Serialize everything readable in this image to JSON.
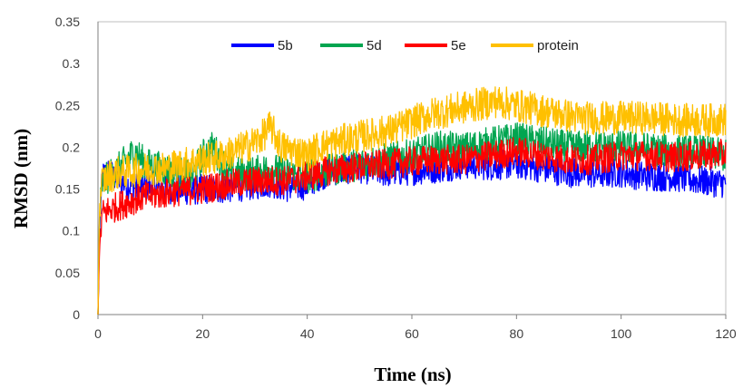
{
  "chart_data": {
    "type": "line",
    "title": "",
    "xlabel": "Time (ns)",
    "ylabel": "RMSD (nm)",
    "xlim": [
      0,
      120
    ],
    "ylim": [
      0,
      0.35
    ],
    "xticks": [
      "0",
      "20",
      "40",
      "60",
      "80",
      "100",
      "120"
    ],
    "yticks": [
      "0",
      "0.05",
      "0.1",
      "0.15",
      "0.2",
      "0.25",
      "0.3",
      "0.35"
    ],
    "grid": false,
    "legend_position": "top",
    "series": [
      {
        "name": "5b",
        "color": "#0000ff",
        "points": [
          [
            0,
            0.0
          ],
          [
            0.3,
            0.1
          ],
          [
            0.8,
            0.165
          ],
          [
            2,
            0.17
          ],
          [
            4,
            0.16
          ],
          [
            6,
            0.155
          ],
          [
            8,
            0.15
          ],
          [
            10,
            0.155
          ],
          [
            12,
            0.15
          ],
          [
            15,
            0.15
          ],
          [
            18,
            0.148
          ],
          [
            20,
            0.15
          ],
          [
            23,
            0.15
          ],
          [
            26,
            0.152
          ],
          [
            30,
            0.155
          ],
          [
            33,
            0.158
          ],
          [
            36,
            0.152
          ],
          [
            40,
            0.155
          ],
          [
            42,
            0.165
          ],
          [
            45,
            0.172
          ],
          [
            50,
            0.175
          ],
          [
            55,
            0.17
          ],
          [
            60,
            0.172
          ],
          [
            65,
            0.175
          ],
          [
            70,
            0.18
          ],
          [
            75,
            0.178
          ],
          [
            80,
            0.18
          ],
          [
            85,
            0.175
          ],
          [
            90,
            0.17
          ],
          [
            95,
            0.168
          ],
          [
            100,
            0.17
          ],
          [
            105,
            0.165
          ],
          [
            110,
            0.165
          ],
          [
            115,
            0.16
          ],
          [
            120,
            0.157
          ]
        ]
      },
      {
        "name": "5d",
        "color": "#00a550",
        "points": [
          [
            0,
            0.0
          ],
          [
            0.3,
            0.12
          ],
          [
            0.8,
            0.155
          ],
          [
            2,
            0.165
          ],
          [
            4,
            0.175
          ],
          [
            7,
            0.195
          ],
          [
            9,
            0.18
          ],
          [
            12,
            0.175
          ],
          [
            15,
            0.17
          ],
          [
            18,
            0.165
          ],
          [
            20,
            0.19
          ],
          [
            22,
            0.2
          ],
          [
            25,
            0.17
          ],
          [
            28,
            0.168
          ],
          [
            30,
            0.17
          ],
          [
            33,
            0.175
          ],
          [
            36,
            0.168
          ],
          [
            40,
            0.165
          ],
          [
            43,
            0.17
          ],
          [
            46,
            0.175
          ],
          [
            50,
            0.18
          ],
          [
            55,
            0.185
          ],
          [
            60,
            0.19
          ],
          [
            65,
            0.2
          ],
          [
            70,
            0.198
          ],
          [
            75,
            0.205
          ],
          [
            80,
            0.21
          ],
          [
            85,
            0.205
          ],
          [
            90,
            0.2
          ],
          [
            95,
            0.2
          ],
          [
            100,
            0.2
          ],
          [
            105,
            0.198
          ],
          [
            110,
            0.195
          ],
          [
            115,
            0.195
          ],
          [
            120,
            0.19
          ]
        ]
      },
      {
        "name": "5e",
        "color": "#ff0000",
        "points": [
          [
            0,
            0.0
          ],
          [
            0.3,
            0.08
          ],
          [
            0.8,
            0.12
          ],
          [
            2,
            0.125
          ],
          [
            4,
            0.13
          ],
          [
            6,
            0.135
          ],
          [
            8,
            0.14
          ],
          [
            10,
            0.142
          ],
          [
            13,
            0.145
          ],
          [
            16,
            0.148
          ],
          [
            20,
            0.15
          ],
          [
            24,
            0.155
          ],
          [
            28,
            0.158
          ],
          [
            32,
            0.16
          ],
          [
            36,
            0.16
          ],
          [
            40,
            0.165
          ],
          [
            44,
            0.172
          ],
          [
            48,
            0.175
          ],
          [
            52,
            0.178
          ],
          [
            56,
            0.18
          ],
          [
            60,
            0.183
          ],
          [
            65,
            0.185
          ],
          [
            70,
            0.185
          ],
          [
            75,
            0.19
          ],
          [
            80,
            0.195
          ],
          [
            85,
            0.19
          ],
          [
            90,
            0.185
          ],
          [
            95,
            0.185
          ],
          [
            100,
            0.19
          ],
          [
            105,
            0.19
          ],
          [
            110,
            0.188
          ],
          [
            115,
            0.19
          ],
          [
            120,
            0.192
          ]
        ]
      },
      {
        "name": "protein",
        "color": "#ffc000",
        "points": [
          [
            0,
            0.0
          ],
          [
            0.3,
            0.13
          ],
          [
            0.8,
            0.16
          ],
          [
            2,
            0.165
          ],
          [
            4,
            0.17
          ],
          [
            7,
            0.172
          ],
          [
            10,
            0.175
          ],
          [
            13,
            0.175
          ],
          [
            16,
            0.18
          ],
          [
            20,
            0.185
          ],
          [
            24,
            0.19
          ],
          [
            28,
            0.2
          ],
          [
            31,
            0.21
          ],
          [
            33,
            0.225
          ],
          [
            35,
            0.2
          ],
          [
            38,
            0.195
          ],
          [
            40,
            0.19
          ],
          [
            42,
            0.2
          ],
          [
            45,
            0.205
          ],
          [
            48,
            0.21
          ],
          [
            52,
            0.215
          ],
          [
            56,
            0.22
          ],
          [
            60,
            0.23
          ],
          [
            64,
            0.24
          ],
          [
            68,
            0.245
          ],
          [
            72,
            0.25
          ],
          [
            76,
            0.255
          ],
          [
            80,
            0.25
          ],
          [
            84,
            0.245
          ],
          [
            88,
            0.24
          ],
          [
            92,
            0.235
          ],
          [
            96,
            0.235
          ],
          [
            100,
            0.235
          ],
          [
            105,
            0.235
          ],
          [
            110,
            0.233
          ],
          [
            115,
            0.232
          ],
          [
            120,
            0.233
          ]
        ]
      }
    ]
  }
}
